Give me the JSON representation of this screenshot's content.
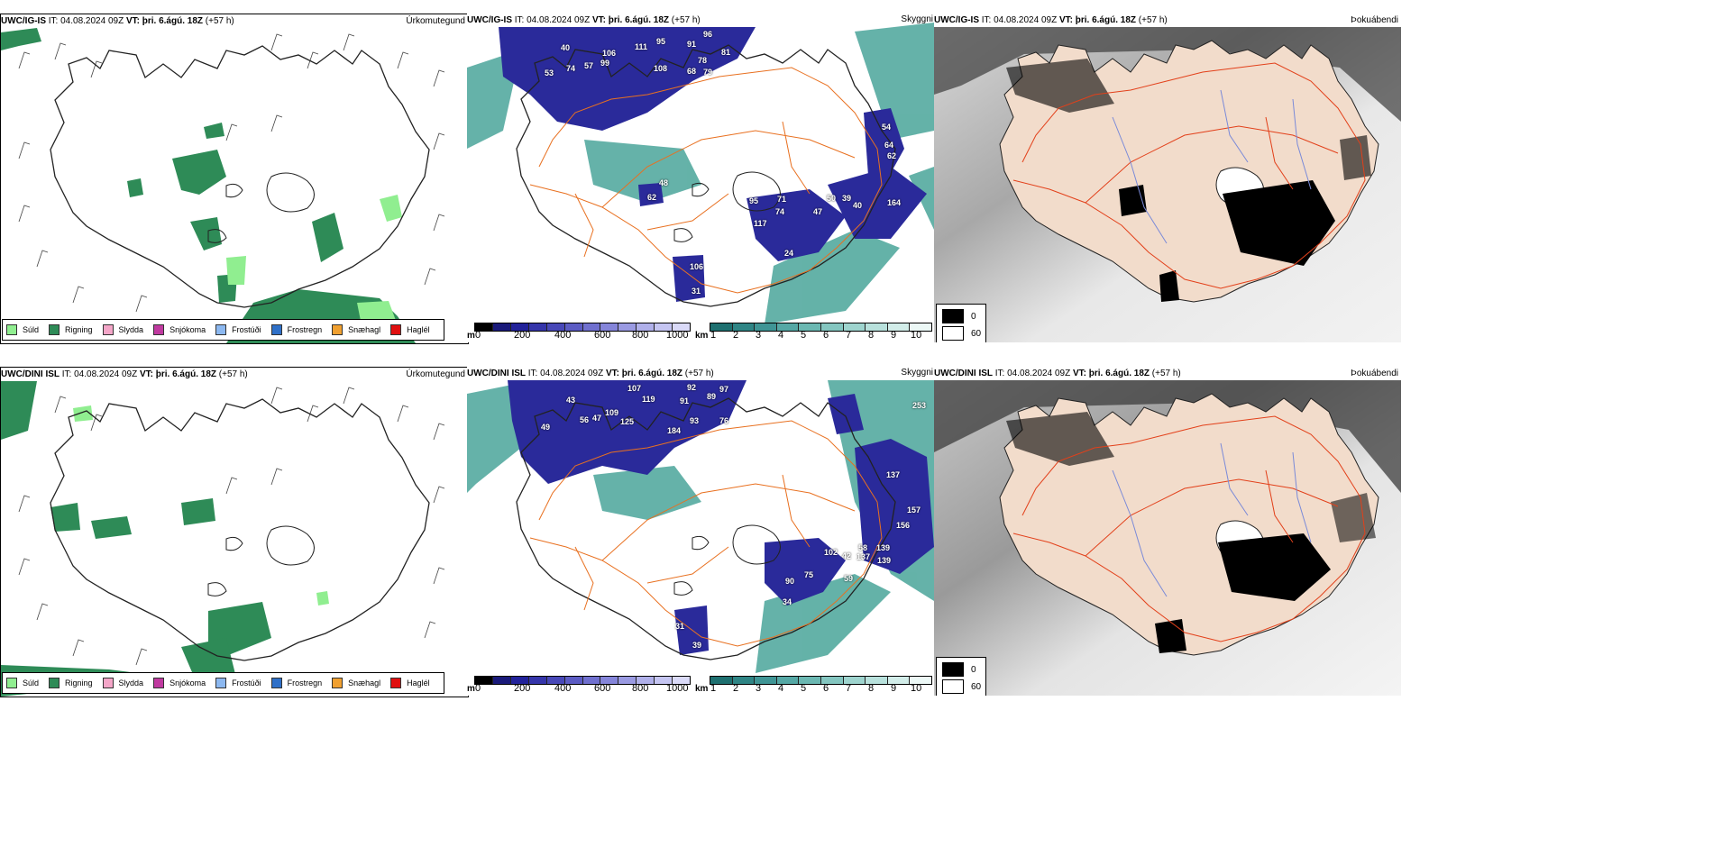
{
  "rows": [
    {
      "model": "UWC/IG-IS",
      "it_label": "IT:",
      "it_value": "04.08.2024 09Z",
      "vt_label": "VT:",
      "vt_value": "þri. 6.ágú. 18Z",
      "lead": "(+57 h)",
      "precip_title": "Úrkomutegund",
      "cloud_title": "Skyggni",
      "fog_title": "Þokuábendi",
      "snow_labels": [
        "40",
        "106",
        "111",
        "95",
        "91",
        "96",
        "57",
        "99",
        "74",
        "53",
        "108",
        "78",
        "81",
        "68",
        "79",
        "48",
        "62",
        "71",
        "74",
        "47",
        "50",
        "39",
        "40",
        "95",
        "164",
        "54",
        "64",
        "62",
        "117",
        "24",
        "106",
        "31"
      ],
      "fog_legend": [
        "0",
        "60"
      ]
    },
    {
      "model": "UWC/DINI ISL",
      "it_label": "IT:",
      "it_value": "04.08.2024 09Z",
      "vt_label": "VT:",
      "vt_value": "þri. 6.ágú. 18Z",
      "lead": "(+57 h)",
      "precip_title": "Úrkomutegund",
      "cloud_title": "Skyggni",
      "fog_title": "Þokuábendi",
      "snow_labels": [
        "107",
        "92",
        "97",
        "43",
        "119",
        "91",
        "89",
        "109",
        "56",
        "47",
        "125",
        "93",
        "76",
        "49",
        "184",
        "253",
        "137",
        "157",
        "156",
        "139",
        "137",
        "139",
        "90",
        "75",
        "102",
        "42",
        "58",
        "59",
        "34",
        "39",
        "31"
      ],
      "fog_legend": [
        "0",
        "60"
      ]
    }
  ],
  "precip_legend": [
    {
      "label": "Súld",
      "color": "#90ee90"
    },
    {
      "label": "Rigning",
      "color": "#2e8b57"
    },
    {
      "label": "Slydda",
      "color": "#f4a6c8"
    },
    {
      "label": "Snjókoma",
      "color": "#c03aa0"
    },
    {
      "label": "Frostúði",
      "color": "#8cb8f0"
    },
    {
      "label": "Frostregn",
      "color": "#2f70c8"
    },
    {
      "label": "Snæhagl",
      "color": "#f0a030"
    },
    {
      "label": "Haglél",
      "color": "#e01010"
    }
  ],
  "snow_scale": {
    "unit": "m",
    "ticks": [
      "0",
      "200",
      "400",
      "600",
      "800",
      "1000"
    ]
  },
  "vis_scale": {
    "unit": "km",
    "ticks": [
      "1",
      "2",
      "3",
      "4",
      "5",
      "6",
      "7",
      "8",
      "9",
      "10"
    ]
  },
  "colors": {
    "rain": "#2e8b57",
    "drizzle": "#90ee90",
    "snow_line": "#2a2a9a",
    "visibility": "#4aa59a",
    "land_fog": "#f2dccb",
    "roads": "#e87020"
  }
}
